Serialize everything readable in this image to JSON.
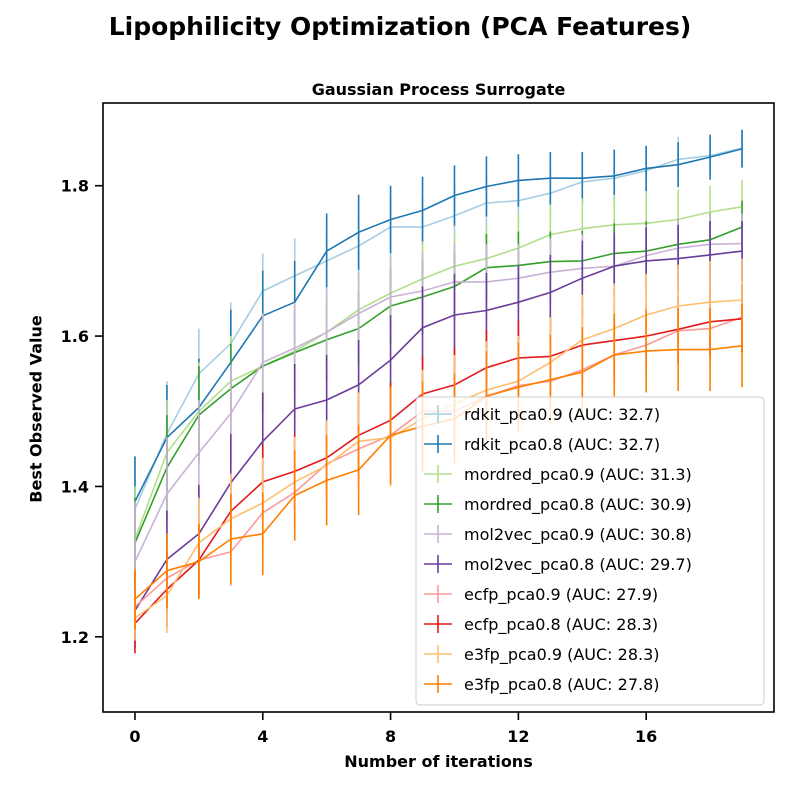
{
  "figure": {
    "title": "Lipophilicity Optimization (PCA Features)"
  },
  "chart_data": {
    "type": "line",
    "title": "Gaussian Process Surrogate",
    "xlabel": "Number of iterations",
    "ylabel": "Best Observed Value",
    "xlim": [
      -1,
      20
    ],
    "ylim": [
      1.1,
      1.91
    ],
    "xticks": [
      0,
      4,
      8,
      12,
      16
    ],
    "yticks": [
      1.2,
      1.4,
      1.6,
      1.8
    ],
    "grid": false,
    "legend_position": "lower right",
    "error_bars": true,
    "x": [
      0,
      1,
      2,
      3,
      4,
      5,
      6,
      7,
      8,
      9,
      10,
      11,
      12,
      13,
      14,
      15,
      16,
      17,
      18,
      19
    ],
    "series": [
      {
        "name": "rdkit_pca0.9 (AUC: 32.7)",
        "color": "#a6cee3",
        "values": [
          1.37,
          1.47,
          1.55,
          1.59,
          1.66,
          1.68,
          1.7,
          1.72,
          1.745,
          1.745,
          1.76,
          1.777,
          1.78,
          1.79,
          1.805,
          1.81,
          1.82,
          1.835,
          1.84,
          1.85
        ],
        "errors": [
          0.07,
          0.07,
          0.06,
          0.055,
          0.05,
          0.05,
          0.045,
          0.045,
          0.04,
          0.04,
          0.04,
          0.035,
          0.035,
          0.035,
          0.03,
          0.03,
          0.03,
          0.03,
          0.025,
          0.025
        ]
      },
      {
        "name": "rdkit_pca0.8 (AUC: 32.7)",
        "color": "#1f78b4",
        "values": [
          1.38,
          1.465,
          1.505,
          1.565,
          1.627,
          1.645,
          1.713,
          1.738,
          1.755,
          1.767,
          1.787,
          1.799,
          1.807,
          1.81,
          1.81,
          1.813,
          1.823,
          1.828,
          1.838,
          1.849
        ],
        "errors": [
          0.06,
          0.07,
          0.065,
          0.07,
          0.06,
          0.055,
          0.05,
          0.05,
          0.045,
          0.045,
          0.04,
          0.04,
          0.035,
          0.035,
          0.035,
          0.035,
          0.03,
          0.03,
          0.03,
          0.025
        ]
      },
      {
        "name": "mordred_pca0.9 (AUC: 31.3)",
        "color": "#b2df8a",
        "values": [
          1.33,
          1.445,
          1.5,
          1.54,
          1.56,
          1.58,
          1.605,
          1.635,
          1.657,
          1.676,
          1.693,
          1.703,
          1.717,
          1.735,
          1.743,
          1.748,
          1.75,
          1.755,
          1.765,
          1.772
        ],
        "errors": [
          0.07,
          0.07,
          0.065,
          0.06,
          0.06,
          0.055,
          0.055,
          0.05,
          0.05,
          0.05,
          0.045,
          0.045,
          0.045,
          0.04,
          0.04,
          0.04,
          0.04,
          0.04,
          0.035,
          0.035
        ]
      },
      {
        "name": "mordred_pca0.8 (AUC: 30.9)",
        "color": "#33a02c",
        "values": [
          1.325,
          1.425,
          1.495,
          1.53,
          1.56,
          1.578,
          1.595,
          1.61,
          1.64,
          1.652,
          1.666,
          1.691,
          1.694,
          1.699,
          1.7,
          1.71,
          1.713,
          1.722,
          1.728,
          1.745
        ],
        "errors": [
          0.06,
          0.07,
          0.065,
          0.06,
          0.06,
          0.055,
          0.055,
          0.05,
          0.05,
          0.05,
          0.045,
          0.045,
          0.045,
          0.04,
          0.04,
          0.04,
          0.04,
          0.035,
          0.035,
          0.035
        ]
      },
      {
        "name": "mol2vec_pca0.9 (AUC: 30.8)",
        "color": "#cab2d6",
        "values": [
          1.3,
          1.39,
          1.445,
          1.497,
          1.565,
          1.584,
          1.605,
          1.63,
          1.652,
          1.66,
          1.672,
          1.672,
          1.677,
          1.685,
          1.69,
          1.693,
          1.707,
          1.717,
          1.722,
          1.723
        ],
        "errors": [
          0.08,
          0.075,
          0.07,
          0.065,
          0.065,
          0.06,
          0.06,
          0.055,
          0.055,
          0.05,
          0.05,
          0.05,
          0.045,
          0.045,
          0.045,
          0.04,
          0.04,
          0.04,
          0.04,
          0.04
        ]
      },
      {
        "name": "mol2vec_pca0.8 (AUC: 29.7)",
        "color": "#6a3d9a",
        "values": [
          1.235,
          1.303,
          1.337,
          1.405,
          1.46,
          1.503,
          1.515,
          1.535,
          1.568,
          1.611,
          1.628,
          1.634,
          1.645,
          1.658,
          1.677,
          1.693,
          1.7,
          1.703,
          1.708,
          1.713
        ],
        "errors": [
          0.05,
          0.065,
          0.065,
          0.065,
          0.065,
          0.06,
          0.06,
          0.06,
          0.06,
          0.055,
          0.055,
          0.05,
          0.05,
          0.05,
          0.05,
          0.045,
          0.045,
          0.045,
          0.045,
          0.04
        ]
      },
      {
        "name": "ecfp_pca0.9 (AUC: 27.9)",
        "color": "#fb9a99",
        "values": [
          1.24,
          1.278,
          1.302,
          1.313,
          1.365,
          1.392,
          1.43,
          1.45,
          1.468,
          1.5,
          1.5,
          1.52,
          1.534,
          1.54,
          1.555,
          1.575,
          1.588,
          1.607,
          1.61,
          1.625
        ],
        "errors": [
          0.04,
          0.045,
          0.045,
          0.045,
          0.05,
          0.05,
          0.05,
          0.05,
          0.05,
          0.05,
          0.05,
          0.05,
          0.05,
          0.05,
          0.05,
          0.05,
          0.05,
          0.045,
          0.045,
          0.045
        ]
      },
      {
        "name": "ecfp_pca0.8 (AUC: 28.3)",
        "color": "#e31a1c",
        "values": [
          1.218,
          1.263,
          1.302,
          1.367,
          1.406,
          1.42,
          1.438,
          1.468,
          1.488,
          1.523,
          1.535,
          1.558,
          1.571,
          1.573,
          1.588,
          1.594,
          1.6,
          1.609,
          1.619,
          1.623
        ],
        "errors": [
          0.04,
          0.05,
          0.05,
          0.05,
          0.05,
          0.05,
          0.05,
          0.05,
          0.05,
          0.05,
          0.05,
          0.05,
          0.05,
          0.05,
          0.05,
          0.05,
          0.045,
          0.045,
          0.045,
          0.045
        ]
      },
      {
        "name": "e3fp_pca0.9 (AUC: 28.3)",
        "color": "#fdbf6f",
        "values": [
          1.225,
          1.255,
          1.325,
          1.357,
          1.378,
          1.406,
          1.428,
          1.46,
          1.465,
          1.49,
          1.51,
          1.528,
          1.54,
          1.565,
          1.595,
          1.61,
          1.628,
          1.64,
          1.645,
          1.648
        ],
        "errors": [
          0.03,
          0.05,
          0.06,
          0.06,
          0.06,
          0.06,
          0.06,
          0.065,
          0.065,
          0.065,
          0.065,
          0.065,
          0.06,
          0.06,
          0.06,
          0.06,
          0.055,
          0.055,
          0.055,
          0.055
        ]
      },
      {
        "name": "e3fp_pca0.8 (AUC: 27.8)",
        "color": "#ff7f00",
        "values": [
          1.25,
          1.288,
          1.3,
          1.33,
          1.337,
          1.388,
          1.408,
          1.422,
          1.468,
          1.48,
          1.49,
          1.52,
          1.532,
          1.542,
          1.552,
          1.575,
          1.58,
          1.582,
          1.582,
          1.587
        ],
        "errors": [
          0.04,
          0.05,
          0.05,
          0.06,
          0.055,
          0.06,
          0.06,
          0.06,
          0.065,
          0.06,
          0.06,
          0.06,
          0.06,
          0.06,
          0.06,
          0.055,
          0.055,
          0.055,
          0.055,
          0.055
        ]
      }
    ]
  }
}
